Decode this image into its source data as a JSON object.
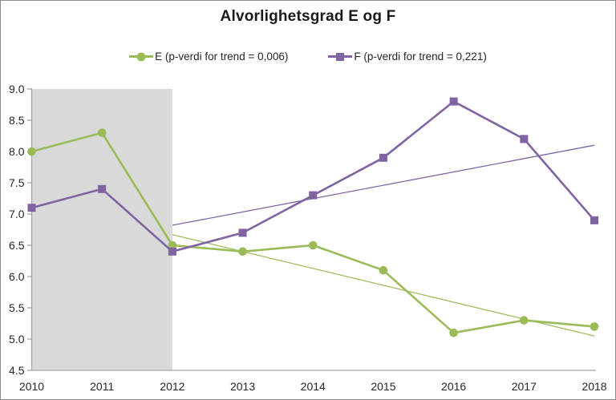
{
  "chart_data": {
    "type": "line",
    "title": "Alvorlighetsgrad E og F",
    "categories": [
      "2010",
      "2011",
      "2012",
      "2013",
      "2014",
      "2015",
      "2016",
      "2017",
      "2018"
    ],
    "series": [
      {
        "name": "E (p-verdi for trend = 0,006)",
        "key": "e",
        "color": "#9BBB59",
        "marker": "circle",
        "values": [
          8.0,
          8.3,
          6.5,
          6.4,
          6.5,
          6.1,
          5.1,
          5.3,
          5.2
        ]
      },
      {
        "name": "F (p-verdi for trend = 0,221)",
        "key": "f",
        "color": "#8064A2",
        "marker": "square",
        "values": [
          7.1,
          7.4,
          6.4,
          6.7,
          7.3,
          7.9,
          8.8,
          8.2,
          6.9
        ]
      }
    ],
    "trendlines": [
      {
        "for_series": "e",
        "color": "#9BBB59",
        "from": {
          "x": "2012",
          "y": 6.67
        },
        "to": {
          "x": "2018",
          "y": 5.05
        }
      },
      {
        "for_series": "f",
        "color": "#8064A2",
        "from": {
          "x": "2012",
          "y": 6.82
        },
        "to": {
          "x": "2018",
          "y": 8.1
        }
      }
    ],
    "y_axis": {
      "min": 4.5,
      "max": 9.0,
      "tick_labels": [
        "4.5",
        "5.0",
        "5.5",
        "6.0",
        "6.5",
        "7.0",
        "7.5",
        "8.0",
        "8.5",
        "9.0"
      ]
    },
    "x_axis": {
      "tick_labels": [
        "2010",
        "2011",
        "2012",
        "2013",
        "2014",
        "2015",
        "2016",
        "2017",
        "2018"
      ]
    },
    "highlight_band": {
      "from_category": "2010",
      "to_category": "2012",
      "color": "#D9D9D9"
    },
    "grid": false,
    "legend_position": "top",
    "axis_color": "#A6A6A6",
    "text_color": "#262626"
  }
}
